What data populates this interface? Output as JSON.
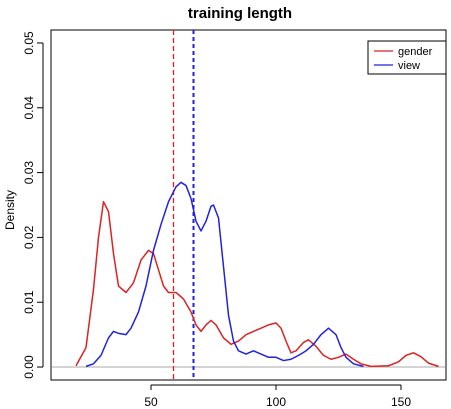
{
  "chart_data": {
    "type": "line",
    "title": "training length",
    "xlabel": "",
    "ylabel": "Density",
    "xlim": [
      10,
      168
    ],
    "ylim": [
      -0.002,
      0.052
    ],
    "xticks": [
      50,
      100,
      150
    ],
    "yticks": [
      0.0,
      0.01,
      0.02,
      0.03,
      0.04,
      0.05
    ],
    "ytick_labels": [
      "0.00",
      "0.01",
      "0.02",
      "0.03",
      "0.04",
      "0.05"
    ],
    "legend_position": "top-right",
    "series": [
      {
        "name": "gender",
        "color": "#dd2222",
        "mean": 59,
        "points": [
          [
            20,
            0.0002
          ],
          [
            24,
            0.003
          ],
          [
            27,
            0.012
          ],
          [
            29,
            0.02
          ],
          [
            31,
            0.0255
          ],
          [
            33,
            0.024
          ],
          [
            35,
            0.0175
          ],
          [
            37,
            0.0125
          ],
          [
            40,
            0.0115
          ],
          [
            43,
            0.013
          ],
          [
            46,
            0.0165
          ],
          [
            49,
            0.018
          ],
          [
            51,
            0.0175
          ],
          [
            53,
            0.015
          ],
          [
            55,
            0.0125
          ],
          [
            57,
            0.0115
          ],
          [
            60,
            0.0115
          ],
          [
            63,
            0.0105
          ],
          [
            66,
            0.0085
          ],
          [
            68,
            0.0065
          ],
          [
            70,
            0.0055
          ],
          [
            72,
            0.0065
          ],
          [
            74,
            0.0072
          ],
          [
            76,
            0.0065
          ],
          [
            79,
            0.0045
          ],
          [
            82,
            0.0035
          ],
          [
            85,
            0.004
          ],
          [
            88,
            0.005
          ],
          [
            91,
            0.0055
          ],
          [
            94,
            0.006
          ],
          [
            97,
            0.0065
          ],
          [
            100,
            0.0068
          ],
          [
            102,
            0.006
          ],
          [
            104,
            0.004
          ],
          [
            106,
            0.0022
          ],
          [
            108,
            0.0025
          ],
          [
            111,
            0.0038
          ],
          [
            113,
            0.0042
          ],
          [
            116,
            0.0032
          ],
          [
            119,
            0.0018
          ],
          [
            122,
            0.0012
          ],
          [
            125,
            0.0015
          ],
          [
            128,
            0.002
          ],
          [
            131,
            0.0012
          ],
          [
            134,
            0.0005
          ],
          [
            138,
            0.0001
          ],
          [
            145,
            0.0002
          ],
          [
            149,
            0.0008
          ],
          [
            152,
            0.0018
          ],
          [
            155,
            0.0022
          ],
          [
            158,
            0.0016
          ],
          [
            161,
            0.0006
          ],
          [
            165,
            0.0001
          ]
        ]
      },
      {
        "name": "view",
        "color": "#2222dd",
        "mean": 67,
        "points": [
          [
            24,
            0.0001
          ],
          [
            27,
            0.0005
          ],
          [
            30,
            0.0018
          ],
          [
            33,
            0.0045
          ],
          [
            35,
            0.0055
          ],
          [
            37,
            0.0052
          ],
          [
            40,
            0.005
          ],
          [
            42,
            0.006
          ],
          [
            45,
            0.0085
          ],
          [
            48,
            0.0125
          ],
          [
            51,
            0.018
          ],
          [
            54,
            0.022
          ],
          [
            57,
            0.0255
          ],
          [
            60,
            0.0278
          ],
          [
            62,
            0.0285
          ],
          [
            64,
            0.028
          ],
          [
            66,
            0.026
          ],
          [
            68,
            0.0225
          ],
          [
            70,
            0.021
          ],
          [
            72,
            0.0225
          ],
          [
            74,
            0.0248
          ],
          [
            75,
            0.025
          ],
          [
            77,
            0.023
          ],
          [
            79,
            0.0155
          ],
          [
            81,
            0.008
          ],
          [
            83,
            0.004
          ],
          [
            85,
            0.0025
          ],
          [
            88,
            0.002
          ],
          [
            91,
            0.0025
          ],
          [
            94,
            0.002
          ],
          [
            97,
            0.0015
          ],
          [
            100,
            0.0015
          ],
          [
            103,
            0.001
          ],
          [
            106,
            0.0012
          ],
          [
            109,
            0.0018
          ],
          [
            112,
            0.0025
          ],
          [
            115,
            0.0035
          ],
          [
            118,
            0.005
          ],
          [
            121,
            0.006
          ],
          [
            124,
            0.005
          ],
          [
            126,
            0.003
          ],
          [
            128,
            0.0015
          ],
          [
            131,
            0.0005
          ],
          [
            135,
            0.0001
          ]
        ]
      }
    ]
  }
}
